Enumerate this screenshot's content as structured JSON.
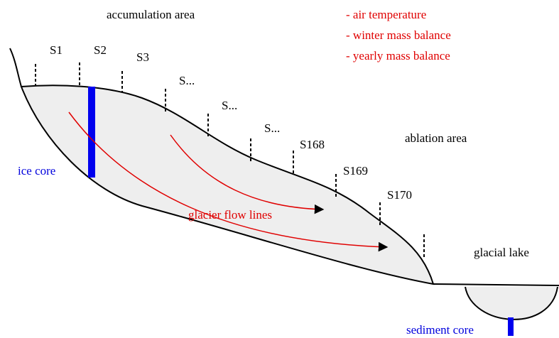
{
  "title": "accumulation area",
  "measurements": [
    "- air temperature",
    "- winter mass balance",
    "- yearly mass balance"
  ],
  "stakes": [
    "S1",
    "S2",
    "S3",
    "S...",
    "S...",
    "S...",
    "S168",
    "S169",
    "S170"
  ],
  "ablation_label": "ablation area",
  "ice_core_label": "ice core",
  "flow_label": "glacier flow lines",
  "lake_label": "glacial lake",
  "sediment_core_label": "sediment core"
}
